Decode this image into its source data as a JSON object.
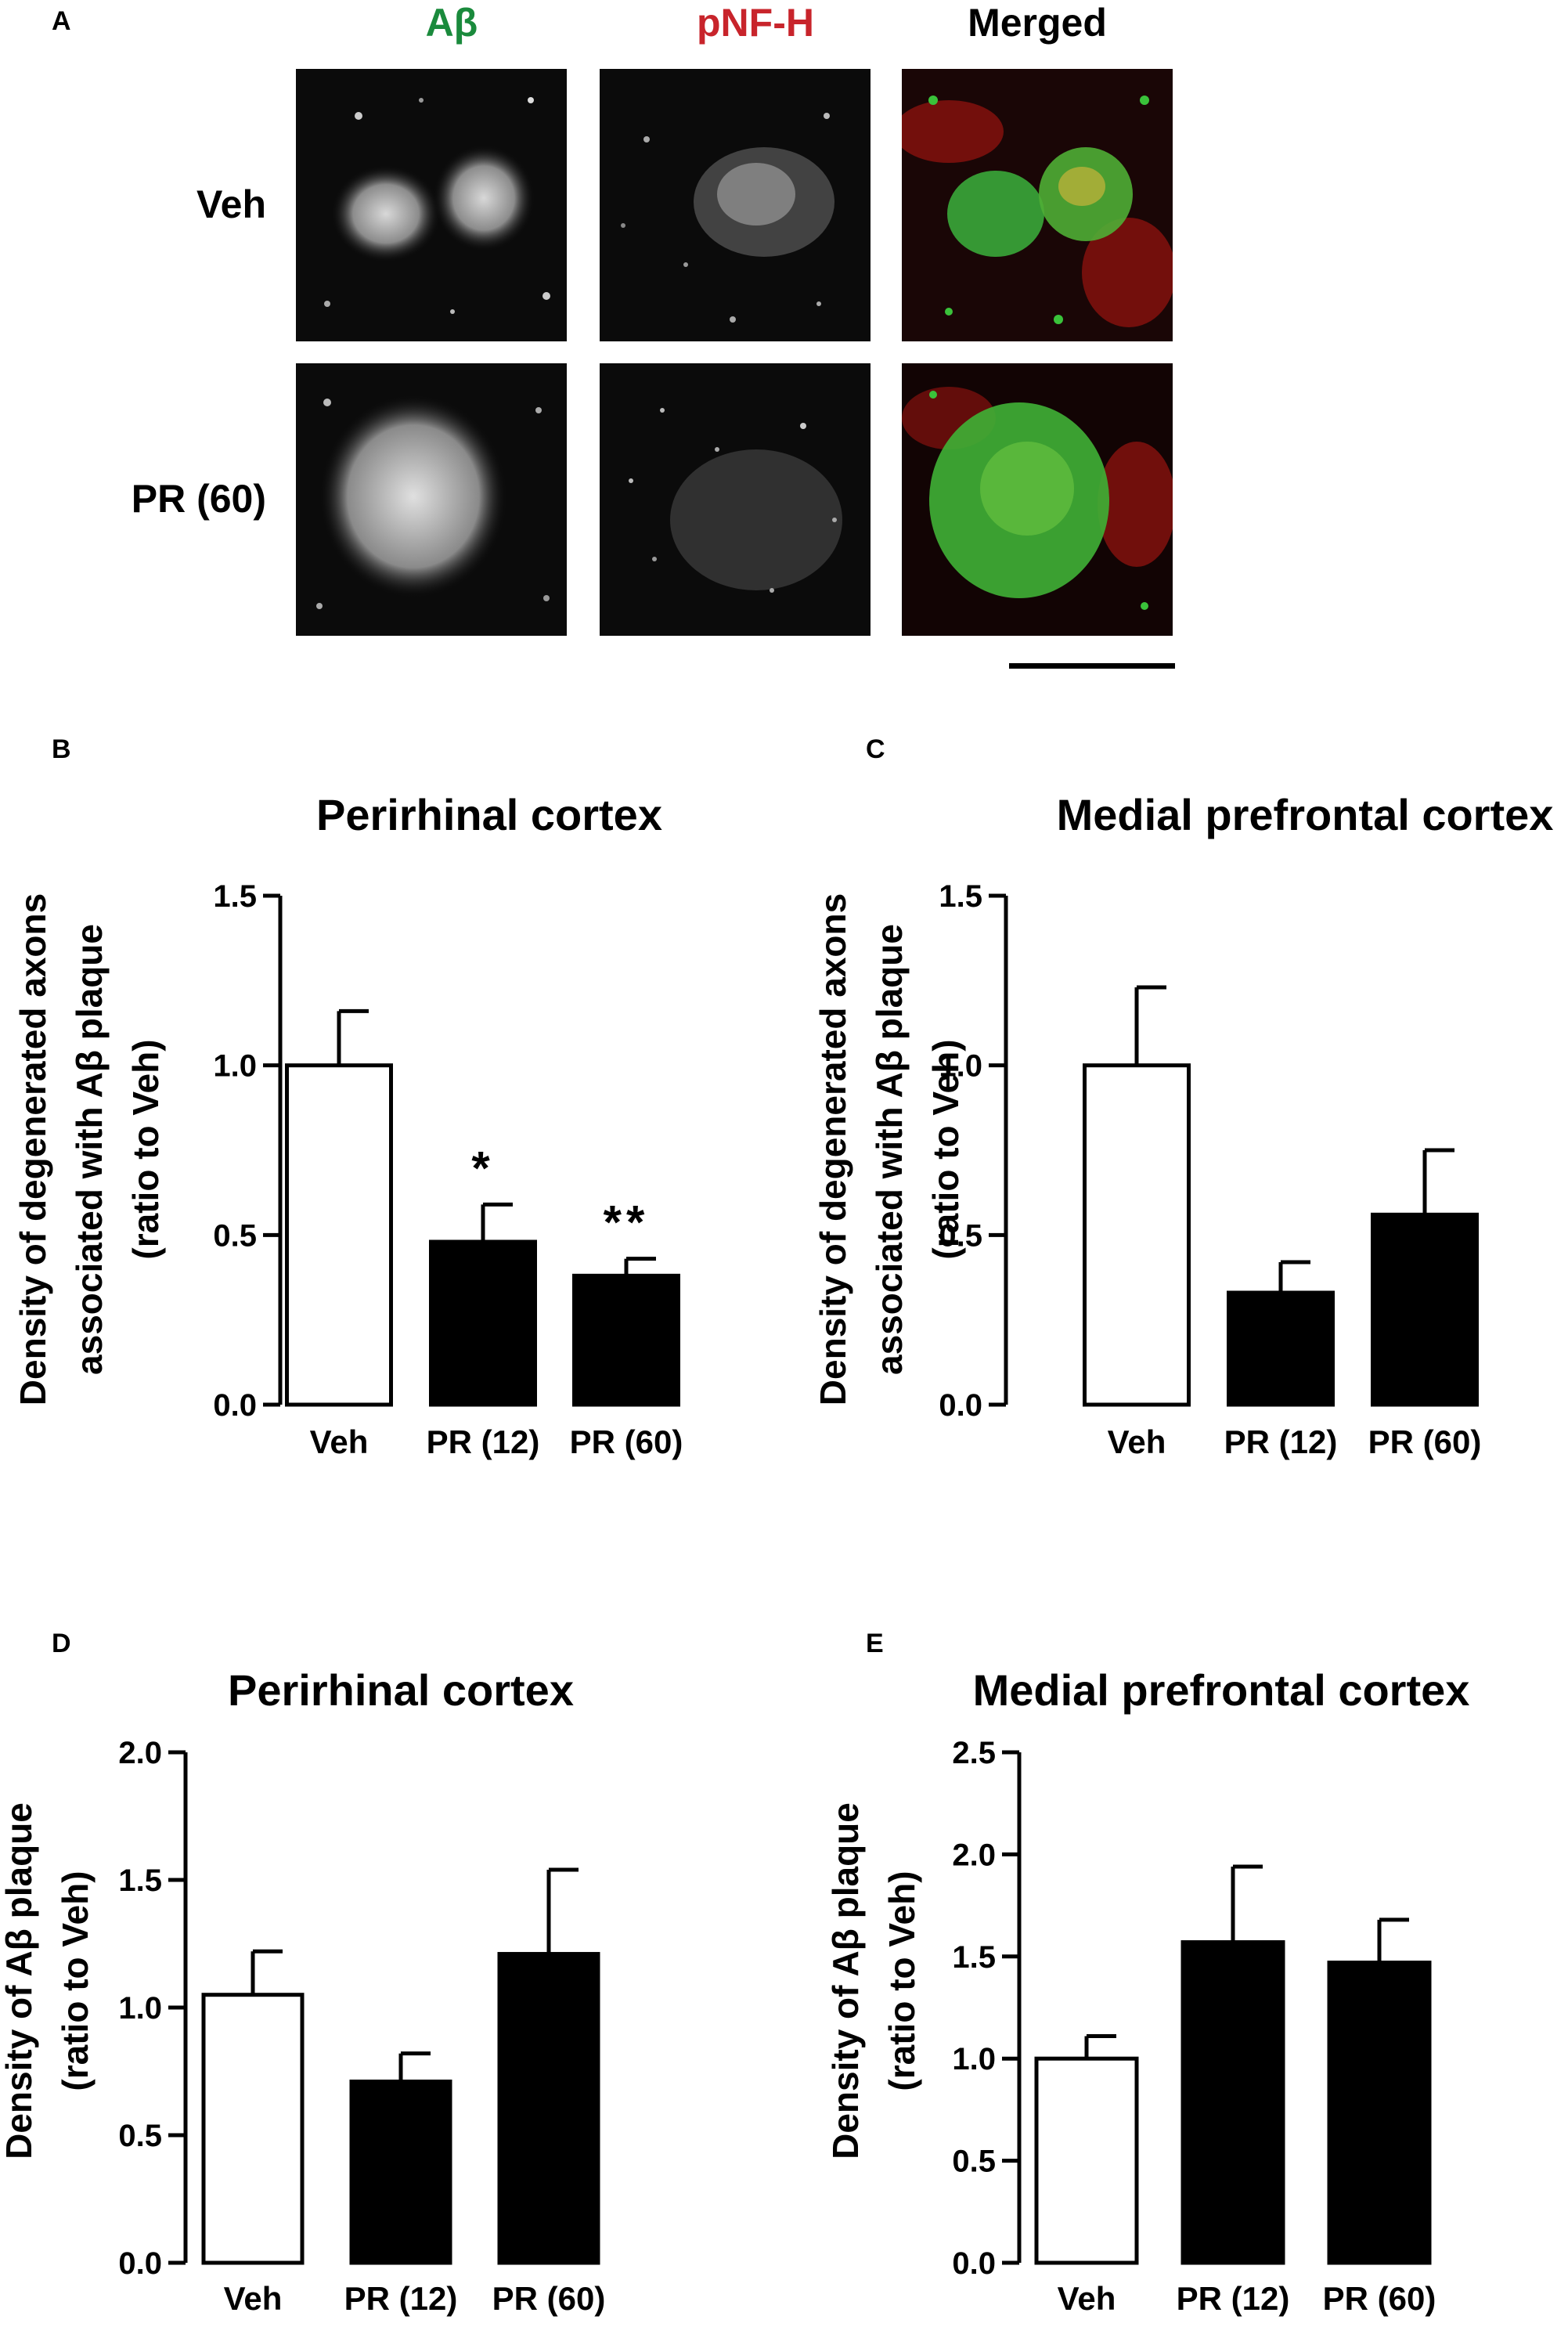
{
  "panel_a": {
    "letter": "A",
    "columns": [
      {
        "label": "Aβ",
        "color": "#1a8a3c"
      },
      {
        "label": "pNF-H",
        "color": "#c8242b"
      },
      {
        "label": "Merged",
        "color": "#000000"
      }
    ],
    "rows": [
      "Veh",
      "PR (60)"
    ]
  },
  "chart_data": [
    {
      "panel": "B",
      "type": "bar",
      "title": "Perirhinal cortex",
      "ylabel_lines": [
        "Density of degenerated axons",
        "associated with Aβ plaque",
        "(ratio to Veh)"
      ],
      "categories": [
        "Veh",
        "PR (12)",
        "PR (60)"
      ],
      "values": [
        1.0,
        0.48,
        0.38
      ],
      "errors": [
        0.16,
        0.11,
        0.05
      ],
      "fills": [
        "#ffffff",
        "#000000",
        "#000000"
      ],
      "annotations": [
        "",
        "*",
        "**"
      ],
      "ylim": [
        0,
        1.5
      ],
      "yticks": [
        0.0,
        0.5,
        1.0,
        1.5
      ],
      "ytick_labels": [
        "0.0",
        "0.5",
        "1.0",
        "1.5"
      ]
    },
    {
      "panel": "C",
      "type": "bar",
      "title": "Medial prefrontal cortex",
      "ylabel_lines": [
        "Density of degenerated axons",
        "associated with Aβ plaque",
        "(ratio to Veh)"
      ],
      "categories": [
        "Veh",
        "PR (12)",
        "PR (60)"
      ],
      "values": [
        1.0,
        0.33,
        0.56
      ],
      "errors": [
        0.23,
        0.09,
        0.19
      ],
      "fills": [
        "#ffffff",
        "#000000",
        "#000000"
      ],
      "annotations": [
        "",
        "",
        ""
      ],
      "ylim": [
        0,
        1.5
      ],
      "yticks": [
        0.0,
        0.5,
        1.0,
        1.5
      ],
      "ytick_labels": [
        "0.0",
        "0.5",
        "1.0",
        "1.5"
      ]
    },
    {
      "panel": "D",
      "type": "bar",
      "title": "Perirhinal cortex",
      "ylabel_lines": [
        "Density of Aβ plaque",
        "(ratio to Veh)"
      ],
      "categories": [
        "Veh",
        "PR (12)",
        "PR (60)"
      ],
      "values": [
        1.05,
        0.71,
        1.21
      ],
      "errors": [
        0.17,
        0.11,
        0.33
      ],
      "fills": [
        "#ffffff",
        "#000000",
        "#000000"
      ],
      "annotations": [
        "",
        "",
        ""
      ],
      "ylim": [
        0,
        2.0
      ],
      "yticks": [
        0.0,
        0.5,
        1.0,
        1.5,
        2.0
      ],
      "ytick_labels": [
        "0.0",
        "0.5",
        "1.0",
        "1.5",
        "2.0"
      ]
    },
    {
      "panel": "E",
      "type": "bar",
      "title": "Medial prefrontal cortex",
      "ylabel_lines": [
        "Density of Aβ plaque",
        "(ratio to Veh)"
      ],
      "categories": [
        "Veh",
        "PR (12)",
        "PR (60)"
      ],
      "values": [
        1.0,
        1.57,
        1.47
      ],
      "errors": [
        0.11,
        0.37,
        0.21
      ],
      "fills": [
        "#ffffff",
        "#000000",
        "#000000"
      ],
      "annotations": [
        "",
        "",
        ""
      ],
      "ylim": [
        0,
        2.5
      ],
      "yticks": [
        0.0,
        0.5,
        1.0,
        1.5,
        2.0,
        2.5
      ],
      "ytick_labels": [
        "0.0",
        "0.5",
        "1.0",
        "1.5",
        "2.0",
        "2.5"
      ]
    }
  ]
}
